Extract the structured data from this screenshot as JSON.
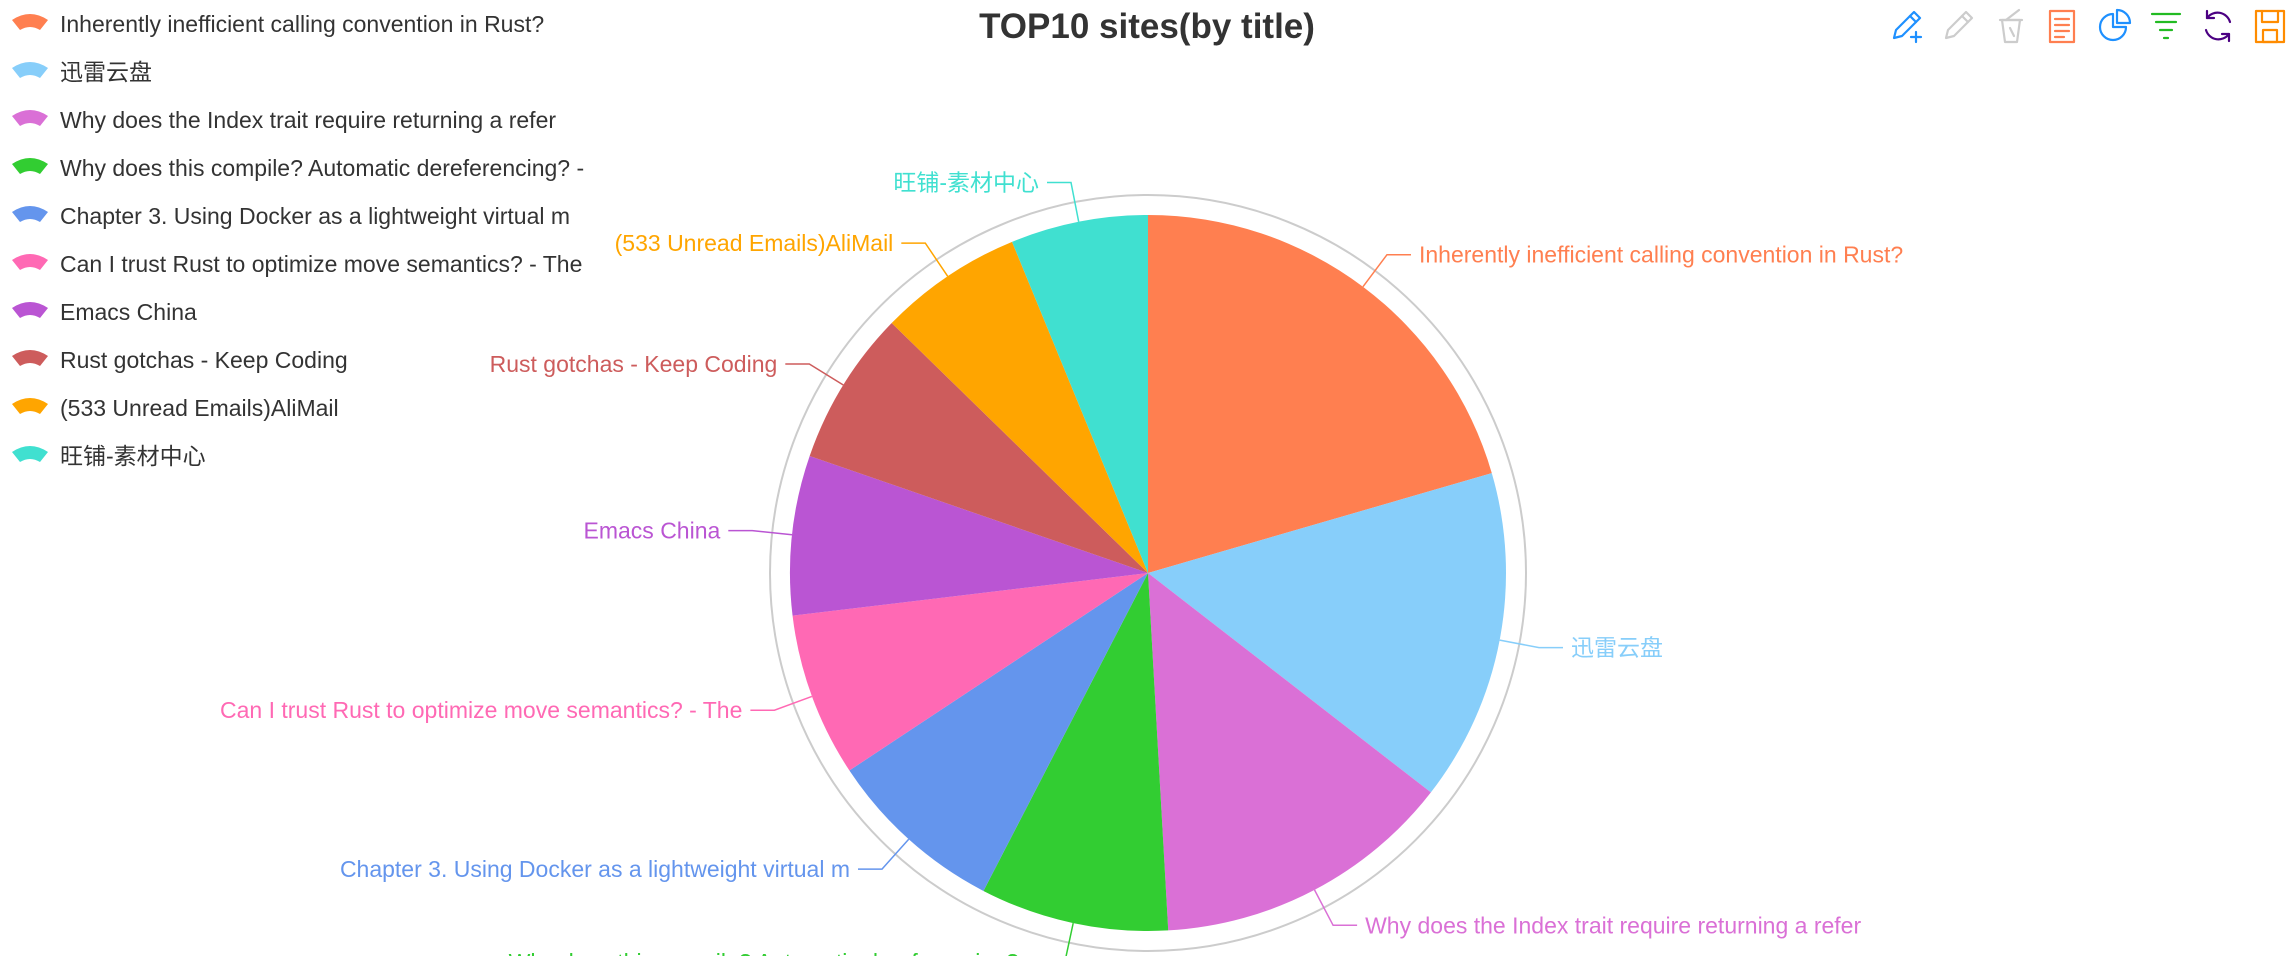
{
  "chart_data": {
    "type": "pie",
    "title": "TOP10 sites(by title)",
    "legend_position": "top-left",
    "slices": [
      {
        "label": "Inherently inefficient calling convention in Rust?",
        "value": 20.5,
        "color": "#ff7f50"
      },
      {
        "label": "迅雷云盘",
        "value": 15.0,
        "color": "#87cefa"
      },
      {
        "label": "Why does the Index trait require returning a refer",
        "value": 13.6,
        "color": "#da70d6"
      },
      {
        "label": "Why does this compile? Automatic dereferencing? -",
        "value": 8.5,
        "color": "#32cd32"
      },
      {
        "label": "Chapter 3. Using Docker as a lightweight virtual m",
        "value": 8.1,
        "color": "#6495ed"
      },
      {
        "label": "Can I trust Rust to optimize move semantics? - The",
        "value": 7.4,
        "color": "#ff69b4"
      },
      {
        "label": "Emacs China",
        "value": 7.2,
        "color": "#ba55d3"
      },
      {
        "label": "Rust gotchas - Keep Coding",
        "value": 7.0,
        "color": "#cd5c5c"
      },
      {
        "label": "(533 Unread Emails)AliMail",
        "value": 6.5,
        "color": "#ffa500"
      },
      {
        "label": "旺铺-素材中心",
        "value": 6.2,
        "color": "#40e0d0"
      }
    ]
  },
  "toolbox": [
    {
      "name": "mark-icon",
      "color": "#1e90ff"
    },
    {
      "name": "mark-undo-icon",
      "color": "#cccccc"
    },
    {
      "name": "mark-clear-icon",
      "color": "#cccccc"
    },
    {
      "name": "data-view-icon",
      "color": "#ff7f50"
    },
    {
      "name": "pie-chart-icon",
      "color": "#1e90ff"
    },
    {
      "name": "funnel-icon",
      "color": "#22bb22"
    },
    {
      "name": "restore-icon",
      "color": "#4b0082"
    },
    {
      "name": "save-image-icon",
      "color": "#ff8c00"
    }
  ]
}
